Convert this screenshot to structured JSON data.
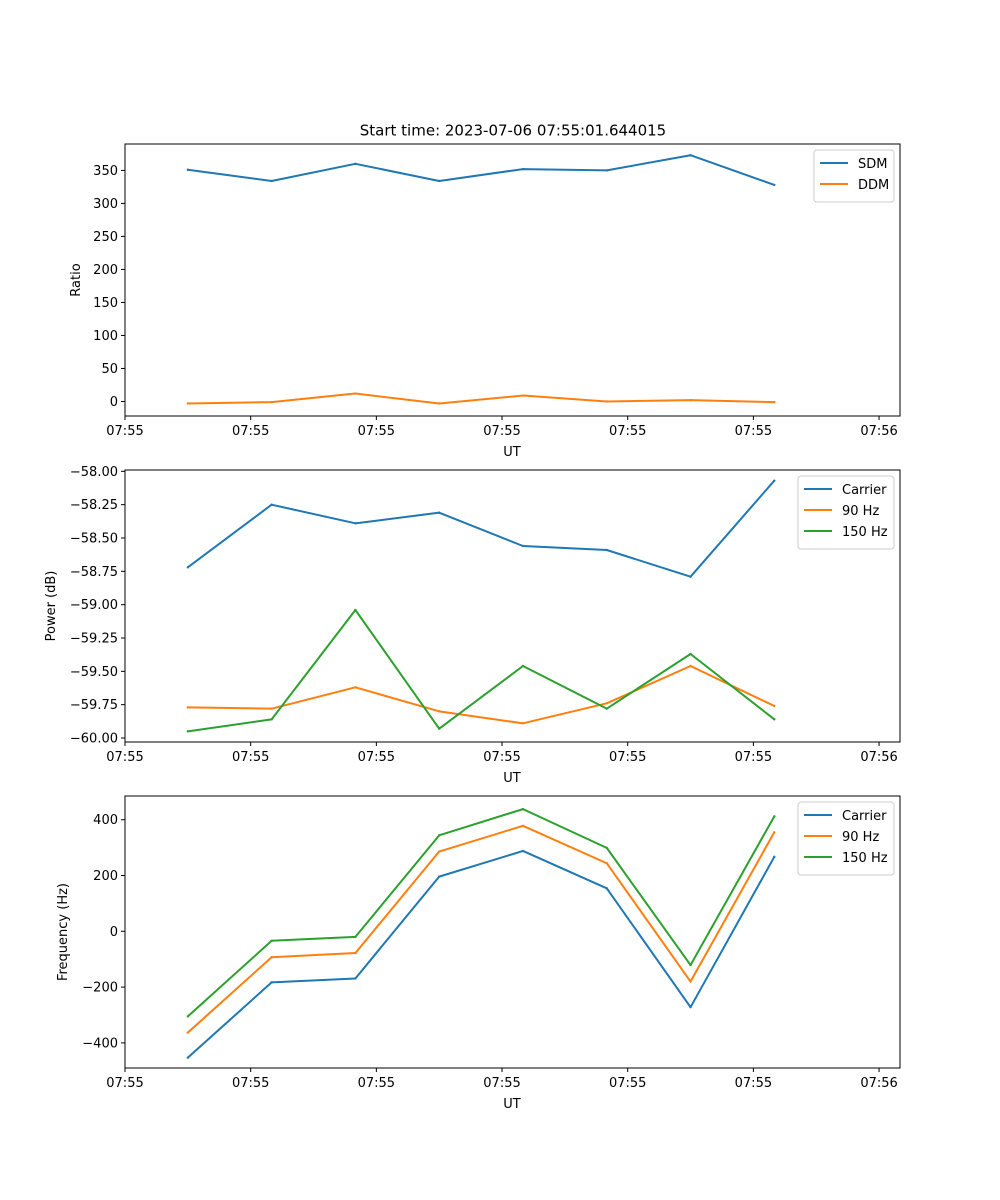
{
  "figure_title": "Start time: 2023-07-06 07:55:01.644015",
  "colors": {
    "blue": "#1f77b4",
    "orange": "#ff7f0e",
    "green": "#2ca02c",
    "axis": "#000000"
  },
  "chart_data": [
    {
      "type": "line",
      "title": "Start time: 2023-07-06 07:55:01.644015",
      "xlabel": "UT",
      "ylabel": "Ratio",
      "x": [
        1,
        2,
        3,
        4,
        5,
        6,
        7,
        8
      ],
      "xlim": [
        0.25,
        9.5
      ],
      "xticks": [
        {
          "v": 0.25,
          "label": "07:55"
        },
        {
          "v": 1.75,
          "label": "07:55"
        },
        {
          "v": 3.25,
          "label": "07:55"
        },
        {
          "v": 4.75,
          "label": "07:55"
        },
        {
          "v": 6.25,
          "label": "07:55"
        },
        {
          "v": 7.75,
          "label": "07:55"
        },
        {
          "v": 9.25,
          "label": "07:56"
        }
      ],
      "ylim": [
        -22,
        390
      ],
      "yticks": [
        0,
        50,
        100,
        150,
        200,
        250,
        300,
        350
      ],
      "yticklabels": [
        "0",
        "50",
        "100",
        "150",
        "200",
        "250",
        "300",
        "350"
      ],
      "legend": "top-right",
      "grid": false,
      "series": [
        {
          "name": "SDM",
          "color": "#1f77b4",
          "values": [
            351,
            334,
            360,
            334,
            352,
            350,
            373,
            328
          ]
        },
        {
          "name": "DDM",
          "color": "#ff7f0e",
          "values": [
            -3,
            -1,
            12,
            -3,
            9,
            0,
            2,
            -1
          ]
        }
      ]
    },
    {
      "type": "line",
      "title": "",
      "xlabel": "UT",
      "ylabel": "Power (dB)",
      "x": [
        1,
        2,
        3,
        4,
        5,
        6,
        7,
        8
      ],
      "xlim": [
        0.25,
        9.5
      ],
      "xticks": [
        {
          "v": 0.25,
          "label": "07:55"
        },
        {
          "v": 1.75,
          "label": "07:55"
        },
        {
          "v": 3.25,
          "label": "07:55"
        },
        {
          "v": 4.75,
          "label": "07:55"
        },
        {
          "v": 6.25,
          "label": "07:55"
        },
        {
          "v": 7.75,
          "label": "07:55"
        },
        {
          "v": 9.25,
          "label": "07:56"
        }
      ],
      "ylim": [
        -60.03,
        -57.99
      ],
      "yticks": [
        -60.0,
        -59.75,
        -59.5,
        -59.25,
        -59.0,
        -58.75,
        -58.5,
        -58.25,
        -58.0
      ],
      "yticklabels": [
        "−60.00",
        "−59.75",
        "−59.50",
        "−59.25",
        "−59.00",
        "−58.75",
        "−58.50",
        "−58.25",
        "−58.00"
      ],
      "legend": "top-right",
      "grid": false,
      "series": [
        {
          "name": "Carrier",
          "color": "#1f77b4",
          "values": [
            -58.72,
            -58.25,
            -58.39,
            -58.31,
            -58.56,
            -58.59,
            -58.79,
            -58.07
          ]
        },
        {
          "name": "90 Hz",
          "color": "#ff7f0e",
          "values": [
            -59.77,
            -59.78,
            -59.62,
            -59.8,
            -59.89,
            -59.74,
            -59.46,
            -59.76
          ]
        },
        {
          "name": "150 Hz",
          "color": "#2ca02c",
          "values": [
            -59.95,
            -59.86,
            -59.04,
            -59.93,
            -59.46,
            -59.78,
            -59.37,
            -59.86
          ]
        }
      ]
    },
    {
      "type": "line",
      "title": "",
      "xlabel": "UT",
      "ylabel": "Frequency (Hz)",
      "x": [
        1,
        2,
        3,
        4,
        5,
        6,
        7,
        8
      ],
      "xlim": [
        0.25,
        9.5
      ],
      "xticks": [
        {
          "v": 0.25,
          "label": "07:55"
        },
        {
          "v": 1.75,
          "label": "07:55"
        },
        {
          "v": 3.25,
          "label": "07:55"
        },
        {
          "v": 4.75,
          "label": "07:55"
        },
        {
          "v": 6.25,
          "label": "07:55"
        },
        {
          "v": 7.75,
          "label": "07:55"
        },
        {
          "v": 9.25,
          "label": "07:56"
        }
      ],
      "ylim": [
        -490,
        485
      ],
      "yticks": [
        -400,
        -200,
        0,
        200,
        400
      ],
      "yticklabels": [
        "−400",
        "−200",
        "0",
        "200",
        "400"
      ],
      "legend": "top-right",
      "grid": false,
      "series": [
        {
          "name": "Carrier",
          "color": "#1f77b4",
          "values": [
            -453,
            -183,
            -169,
            196,
            288,
            154,
            -272,
            267
          ]
        },
        {
          "name": "90 Hz",
          "color": "#ff7f0e",
          "values": [
            -363,
            -93,
            -78,
            286,
            378,
            244,
            -180,
            355
          ]
        },
        {
          "name": "150 Hz",
          "color": "#2ca02c",
          "values": [
            -305,
            -34,
            -20,
            344,
            438,
            299,
            -121,
            412
          ]
        }
      ]
    }
  ]
}
